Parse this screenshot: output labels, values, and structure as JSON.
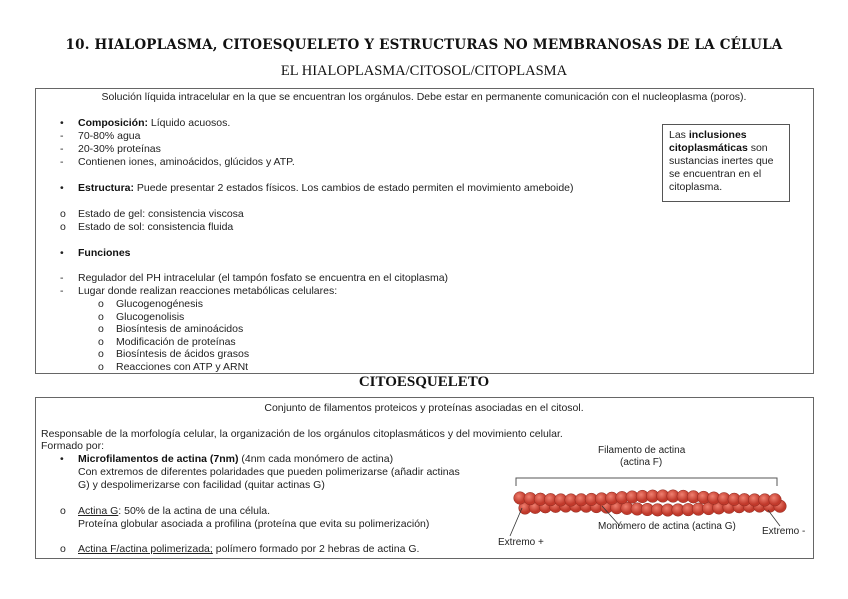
{
  "title": "10. HIALOPLASMA,  CITOESQUELETO Y ESTRUCTURAS NO MEMBRANOSAS DE LA CÉLULA",
  "hialoplasma": {
    "heading": "EL HIALOPLASMA/CITOSOL/CITOPLASMA",
    "intro": "Solución líquida intracelular en la que se encuentran los orgánulos. Debe estar en permanente comunicación con el nucleoplasma (poros).",
    "composicion_label": "Composición:",
    "composicion_text": " Líquido acuosos.",
    "composicion_items": [
      "70-80% agua",
      "20-30% proteínas",
      "Contienen iones, aminoácidos, glúcidos y ATP."
    ],
    "estructura_label": "Estructura:",
    "estructura_text": " Puede presentar 2 estados físicos. Los cambios de estado permiten el movimiento ameboide)",
    "estados": [
      "Estado de gel: consistencia viscosa",
      "Estado de sol: consistencia fluida"
    ],
    "funciones_label": "Funciones",
    "funciones_items": [
      "Regulador del PH intracelular (el tampón fosfato se encuentra en el citoplasma)",
      "Lugar donde realizan reacciones metabólicas celulares:"
    ],
    "reacciones": [
      "Glucogenogénesis",
      "Glucogenolisis",
      "Biosíntesis de aminoácidos",
      "Modificación de proteínas",
      "Biosíntesis de ácidos grasos",
      "Reacciones con ATP y ARNt"
    ],
    "note": {
      "pre": "Las ",
      "bold": "inclusiones citoplasmáticas",
      "post": " son sustancias inertes que se encuentran en el citoplasma."
    }
  },
  "citoesqueleto": {
    "heading": "CITOESQUELETO",
    "intro": "Conjunto de filamentos proteicos y proteínas asociadas en el citosol.",
    "line1": "Responsable de la morfología celular, la organización de los orgánulos citoplasmáticos y del movimiento celular.",
    "line2": "Formado por:",
    "micro_label": "Microfilamentos de actina (7nm)",
    "micro_text": " (4nm cada monómero de actina)",
    "micro_l2": "Con extremos de diferentes polaridades que pueden polimerizarse (añadir actinas",
    "micro_l3": "G) y despolimerizarse con facilidad (quitar actinas G)",
    "actinaG_label": "Actina G",
    "actinaG_text": ": 50% de la actina de una célula.",
    "actinaG_l2": "Proteína globular asociada a profilina (proteína que evita su polimerización)",
    "actinaF_label": "Actina F/actina polimerizada;",
    "actinaF_text": " polímero formado por 2 hebras de actina G.",
    "figure": {
      "label1": "Filamento de actina",
      "label2": "(actina F)",
      "monomer": "Monómero de actina (actina G)",
      "plus": "Extremo +",
      "minus": "Extremo -",
      "color": "#c0392b"
    }
  }
}
